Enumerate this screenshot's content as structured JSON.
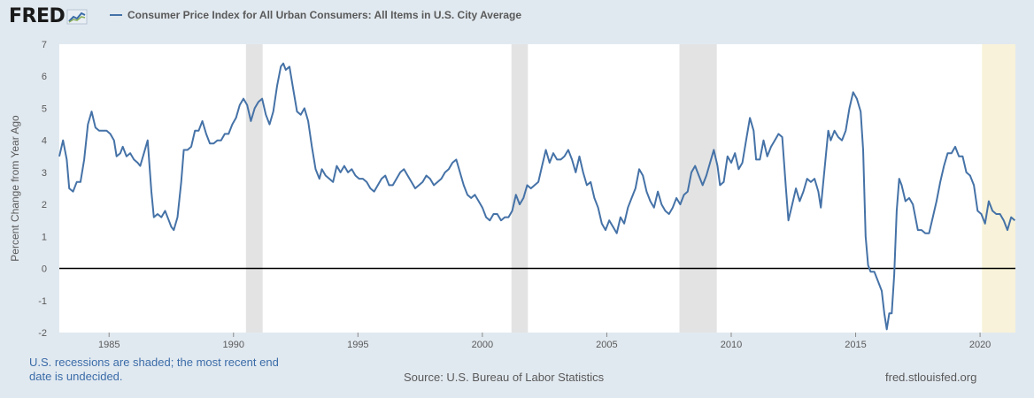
{
  "header": {
    "logo_text": "FRED",
    "legend_label": "Consumer Price Index for All Urban Consumers: All Items in U.S. City Average",
    "logo_icon": "line-chart-icon"
  },
  "footer": {
    "recession_note": "U.S. recessions are shaded; the most recent end date is undecided.",
    "source": "Source: U.S. Bureau of Labor Statistics",
    "site": "fred.stlouisfed.org"
  },
  "colors": {
    "series": "#4572a7",
    "recession": "#e3e3e3",
    "undecided": "#f7f2d9",
    "background": "#e1e9f0",
    "plot": "#ffffff",
    "zero_line": "#000000"
  },
  "chart_data": {
    "type": "line",
    "title": "",
    "ylabel": "Percent Change from Year Ago",
    "xlabel": "",
    "xlim": [
      1983.0,
      2021.42
    ],
    "ylim": [
      -2,
      7
    ],
    "yticks": [
      7,
      6,
      5,
      4,
      3,
      2,
      1,
      0,
      -1,
      -2
    ],
    "xticks": [
      1985,
      1990,
      1995,
      2000,
      2005,
      2010,
      2015,
      2020
    ],
    "grid": false,
    "reference_line": 0,
    "recessions": [
      {
        "start": 1990.5,
        "end": 1991.17
      },
      {
        "start": 2001.17,
        "end": 2001.83
      },
      {
        "start": 2007.92,
        "end": 2009.42
      }
    ],
    "undecided_recession": {
      "start": 2020.08,
      "end": 2021.42
    },
    "series": [
      {
        "name": "Consumer Price Index for All Urban Consumers: All Items in U.S. City Average",
        "points": [
          [
            1983.0,
            3.5
          ],
          [
            1983.15,
            4.0
          ],
          [
            1983.3,
            3.4
          ],
          [
            1983.4,
            2.5
          ],
          [
            1983.55,
            2.4
          ],
          [
            1983.7,
            2.7
          ],
          [
            1983.85,
            2.7
          ],
          [
            1984.0,
            3.4
          ],
          [
            1984.15,
            4.5
          ],
          [
            1984.3,
            4.9
          ],
          [
            1984.45,
            4.4
          ],
          [
            1984.6,
            4.3
          ],
          [
            1984.75,
            4.3
          ],
          [
            1984.9,
            4.3
          ],
          [
            1985.05,
            4.2
          ],
          [
            1985.2,
            4.0
          ],
          [
            1985.3,
            3.5
          ],
          [
            1985.45,
            3.6
          ],
          [
            1985.55,
            3.8
          ],
          [
            1985.7,
            3.5
          ],
          [
            1985.85,
            3.6
          ],
          [
            1986.0,
            3.4
          ],
          [
            1986.15,
            3.3
          ],
          [
            1986.25,
            3.2
          ],
          [
            1986.4,
            3.6
          ],
          [
            1986.55,
            4.0
          ],
          [
            1986.7,
            2.4
          ],
          [
            1986.8,
            1.6
          ],
          [
            1986.95,
            1.7
          ],
          [
            1987.1,
            1.6
          ],
          [
            1987.25,
            1.8
          ],
          [
            1987.4,
            1.5
          ],
          [
            1987.5,
            1.3
          ],
          [
            1987.6,
            1.2
          ],
          [
            1987.75,
            1.6
          ],
          [
            1987.9,
            2.7
          ],
          [
            1988.0,
            3.7
          ],
          [
            1988.15,
            3.7
          ],
          [
            1988.3,
            3.8
          ],
          [
            1988.45,
            4.3
          ],
          [
            1988.6,
            4.3
          ],
          [
            1988.75,
            4.6
          ],
          [
            1988.9,
            4.2
          ],
          [
            1989.05,
            3.9
          ],
          [
            1989.2,
            3.9
          ],
          [
            1989.35,
            4.0
          ],
          [
            1989.5,
            4.0
          ],
          [
            1989.65,
            4.2
          ],
          [
            1989.8,
            4.2
          ],
          [
            1989.95,
            4.5
          ],
          [
            1990.1,
            4.7
          ],
          [
            1990.25,
            5.1
          ],
          [
            1990.4,
            5.3
          ],
          [
            1990.55,
            5.1
          ],
          [
            1990.7,
            4.6
          ],
          [
            1990.85,
            5.0
          ],
          [
            1991.0,
            5.2
          ],
          [
            1991.15,
            5.3
          ],
          [
            1991.3,
            4.8
          ],
          [
            1991.45,
            4.5
          ],
          [
            1991.6,
            4.9
          ],
          [
            1991.75,
            5.7
          ],
          [
            1991.9,
            6.3
          ],
          [
            1992.0,
            6.4
          ],
          [
            1992.1,
            6.2
          ],
          [
            1992.25,
            6.3
          ],
          [
            1992.4,
            5.6
          ],
          [
            1992.55,
            4.9
          ],
          [
            1992.7,
            4.8
          ],
          [
            1992.85,
            5.0
          ],
          [
            1993.0,
            4.6
          ],
          [
            1993.15,
            3.8
          ],
          [
            1993.3,
            3.1
          ],
          [
            1993.45,
            2.8
          ],
          [
            1993.55,
            3.1
          ],
          [
            1993.7,
            2.9
          ],
          [
            1993.85,
            2.8
          ],
          [
            1994.0,
            2.7
          ],
          [
            1994.15,
            3.2
          ],
          [
            1994.3,
            3.0
          ],
          [
            1994.45,
            3.2
          ],
          [
            1994.6,
            3.0
          ],
          [
            1994.75,
            3.1
          ],
          [
            1994.9,
            2.9
          ],
          [
            1995.05,
            2.8
          ],
          [
            1995.2,
            2.8
          ],
          [
            1995.35,
            2.7
          ],
          [
            1995.5,
            2.5
          ],
          [
            1995.65,
            2.4
          ],
          [
            1995.8,
            2.6
          ],
          [
            1995.95,
            2.8
          ],
          [
            1996.1,
            2.9
          ],
          [
            1996.25,
            2.6
          ],
          [
            1996.4,
            2.6
          ],
          [
            1996.55,
            2.8
          ],
          [
            1996.7,
            3.0
          ],
          [
            1996.85,
            3.1
          ],
          [
            1997.0,
            2.9
          ],
          [
            1997.15,
            2.7
          ],
          [
            1997.3,
            2.5
          ],
          [
            1997.45,
            2.6
          ],
          [
            1997.6,
            2.7
          ],
          [
            1997.75,
            2.9
          ],
          [
            1997.9,
            2.8
          ],
          [
            1998.05,
            2.6
          ],
          [
            1998.2,
            2.7
          ],
          [
            1998.35,
            2.8
          ],
          [
            1998.5,
            3.0
          ],
          [
            1998.65,
            3.1
          ],
          [
            1998.8,
            3.3
          ],
          [
            1998.95,
            3.4
          ],
          [
            1999.1,
            3.0
          ],
          [
            1999.25,
            2.6
          ],
          [
            1999.4,
            2.3
          ],
          [
            1999.55,
            2.2
          ],
          [
            1999.7,
            2.3
          ],
          [
            1999.85,
            2.1
          ],
          [
            2000.0,
            1.9
          ],
          [
            2000.15,
            1.6
          ],
          [
            2000.3,
            1.5
          ],
          [
            2000.45,
            1.7
          ],
          [
            2000.6,
            1.7
          ],
          [
            2000.75,
            1.5
          ],
          [
            2000.9,
            1.6
          ],
          [
            2001.05,
            1.6
          ],
          [
            2001.2,
            1.8
          ],
          [
            2001.35,
            2.3
          ],
          [
            2001.5,
            2.0
          ],
          [
            2001.65,
            2.2
          ],
          [
            2001.8,
            2.6
          ],
          [
            2001.95,
            2.5
          ],
          [
            2002.1,
            2.6
          ],
          [
            2002.25,
            2.7
          ],
          [
            2002.4,
            3.2
          ],
          [
            2002.55,
            3.7
          ],
          [
            2002.7,
            3.3
          ],
          [
            2002.85,
            3.6
          ],
          [
            2003.0,
            3.4
          ],
          [
            2003.15,
            3.4
          ],
          [
            2003.3,
            3.5
          ],
          [
            2003.45,
            3.7
          ],
          [
            2003.6,
            3.4
          ],
          [
            2003.75,
            3.0
          ],
          [
            2003.9,
            3.5
          ],
          [
            2004.05,
            3.0
          ],
          [
            2004.2,
            2.6
          ],
          [
            2004.35,
            2.7
          ],
          [
            2004.5,
            2.2
          ],
          [
            2004.65,
            1.9
          ],
          [
            2004.8,
            1.4
          ],
          [
            2004.95,
            1.2
          ],
          [
            2005.1,
            1.5
          ],
          [
            2005.25,
            1.3
          ],
          [
            2005.4,
            1.1
          ],
          [
            2005.55,
            1.6
          ],
          [
            2005.7,
            1.4
          ],
          [
            2005.85,
            1.9
          ],
          [
            2006.0,
            2.2
          ],
          [
            2006.15,
            2.5
          ],
          [
            2006.3,
            3.1
          ],
          [
            2006.45,
            2.9
          ],
          [
            2006.6,
            2.4
          ],
          [
            2006.75,
            2.1
          ],
          [
            2006.9,
            1.9
          ],
          [
            2007.05,
            2.4
          ],
          [
            2007.2,
            2.0
          ],
          [
            2007.35,
            1.8
          ],
          [
            2007.5,
            1.7
          ],
          [
            2007.65,
            1.9
          ],
          [
            2007.8,
            2.2
          ],
          [
            2007.95,
            2.0
          ],
          [
            2008.1,
            2.3
          ],
          [
            2008.25,
            2.4
          ],
          [
            2008.4,
            3.0
          ],
          [
            2008.55,
            3.2
          ],
          [
            2008.7,
            2.9
          ],
          [
            2008.85,
            2.6
          ],
          [
            2009.0,
            2.9
          ],
          [
            2009.15,
            3.3
          ],
          [
            2009.3,
            3.7
          ],
          [
            2009.45,
            3.2
          ],
          [
            2009.55,
            2.6
          ],
          [
            2009.7,
            2.7
          ],
          [
            2009.85,
            3.5
          ],
          [
            2010.0,
            3.3
          ],
          [
            2010.15,
            3.6
          ],
          [
            2010.3,
            3.1
          ],
          [
            2010.45,
            3.3
          ],
          [
            2010.6,
            4.0
          ],
          [
            2010.75,
            4.7
          ],
          [
            2010.9,
            4.3
          ],
          [
            2011.0,
            3.4
          ],
          [
            2011.15,
            3.4
          ],
          [
            2011.3,
            4.0
          ],
          [
            2011.45,
            3.5
          ],
          [
            2011.6,
            3.8
          ],
          [
            2011.75,
            4.0
          ],
          [
            2011.9,
            4.2
          ],
          [
            2012.05,
            4.1
          ],
          [
            2012.2,
            2.5
          ],
          [
            2012.3,
            1.5
          ],
          [
            2012.45,
            2.0
          ],
          [
            2012.6,
            2.5
          ],
          [
            2012.75,
            2.1
          ],
          [
            2012.9,
            2.4
          ],
          [
            2013.05,
            2.8
          ],
          [
            2013.2,
            2.7
          ],
          [
            2013.35,
            2.8
          ],
          [
            2013.5,
            2.4
          ],
          [
            2013.6,
            1.9
          ],
          [
            2013.75,
            3.1
          ],
          [
            2013.9,
            4.3
          ],
          [
            2014.0,
            4.0
          ],
          [
            2014.15,
            4.3
          ],
          [
            2014.3,
            4.1
          ],
          [
            2014.45,
            4.0
          ],
          [
            2014.6,
            4.3
          ],
          [
            2014.75,
            5.0
          ],
          [
            2014.9,
            5.5
          ],
          [
            2015.05,
            5.3
          ],
          [
            2015.2,
            4.9
          ],
          [
            2015.3,
            3.7
          ],
          [
            2015.4,
            1.0
          ],
          [
            2015.5,
            0.1
          ],
          [
            2015.6,
            -0.1
          ],
          [
            2015.75,
            -0.1
          ],
          [
            2015.9,
            -0.4
          ],
          [
            2016.05,
            -0.7
          ],
          [
            2016.15,
            -1.4
          ],
          [
            2016.25,
            -1.9
          ],
          [
            2016.35,
            -1.4
          ],
          [
            2016.45,
            -1.4
          ],
          [
            2016.55,
            -0.2
          ],
          [
            2016.65,
            1.8
          ],
          [
            2016.75,
            2.8
          ],
          [
            2016.85,
            2.6
          ],
          [
            2017.0,
            2.1
          ],
          [
            2017.15,
            2.2
          ],
          [
            2017.3,
            2.0
          ],
          [
            2017.4,
            1.6
          ],
          [
            2017.5,
            1.2
          ],
          [
            2017.65,
            1.2
          ],
          [
            2017.8,
            1.1
          ],
          [
            2017.95,
            1.1
          ],
          [
            2018.1,
            1.6
          ],
          [
            2018.25,
            2.1
          ],
          [
            2018.4,
            2.7
          ],
          [
            2018.55,
            3.2
          ],
          [
            2018.7,
            3.6
          ],
          [
            2018.85,
            3.6
          ],
          [
            2019.0,
            3.8
          ],
          [
            2019.15,
            3.5
          ],
          [
            2019.3,
            3.5
          ],
          [
            2019.45,
            3.0
          ],
          [
            2019.6,
            2.9
          ],
          [
            2019.75,
            2.6
          ],
          [
            2019.9,
            1.8
          ],
          [
            2020.05,
            1.7
          ],
          [
            2020.2,
            1.4
          ],
          [
            2020.35,
            2.1
          ],
          [
            2020.5,
            1.8
          ],
          [
            2020.65,
            1.7
          ],
          [
            2020.8,
            1.7
          ],
          [
            2020.95,
            1.5
          ],
          [
            2021.1,
            1.2
          ],
          [
            2021.25,
            1.6
          ],
          [
            2021.4,
            1.5
          ]
        ]
      }
    ]
  }
}
